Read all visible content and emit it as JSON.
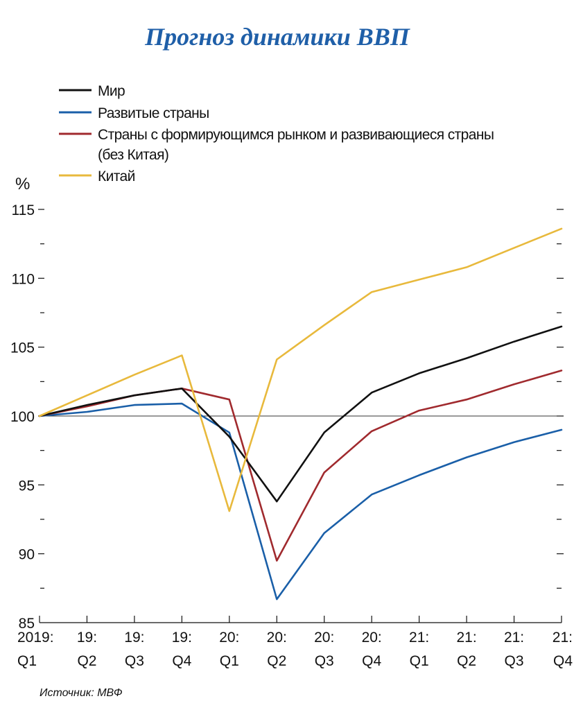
{
  "chart_data": {
    "type": "line",
    "title": "Прогноз динамики ВВП",
    "unit_label": "%",
    "source": "Источник: МВФ",
    "categories": [
      {
        "year": "2019:",
        "quarter": "Q1"
      },
      {
        "year": "19:",
        "quarter": "Q2"
      },
      {
        "year": "19:",
        "quarter": "Q3"
      },
      {
        "year": "19:",
        "quarter": "Q4"
      },
      {
        "year": "20:",
        "quarter": "Q1"
      },
      {
        "year": "20:",
        "quarter": "Q2"
      },
      {
        "year": "20:",
        "quarter": "Q3"
      },
      {
        "year": "20:",
        "quarter": "Q4"
      },
      {
        "year": "21:",
        "quarter": "Q1"
      },
      {
        "year": "21:",
        "quarter": "Q2"
      },
      {
        "year": "21:",
        "quarter": "Q3"
      },
      {
        "year": "21:",
        "quarter": "Q4"
      }
    ],
    "ylim": [
      85,
      115
    ],
    "yticks": [
      85,
      90,
      95,
      100,
      105,
      110,
      115
    ],
    "reference_line": 100,
    "legend_position": "top-left",
    "series": [
      {
        "name": "Мир",
        "name_lines": [
          "Мир"
        ],
        "color": "#111111",
        "values": [
          100,
          100.8,
          101.5,
          102.0,
          98.5,
          93.8,
          98.8,
          101.7,
          103.1,
          104.2,
          105.4,
          106.5
        ]
      },
      {
        "name": "Развитые страны",
        "name_lines": [
          "Развитые страны"
        ],
        "color": "#1a5fa8",
        "values": [
          100,
          100.3,
          100.8,
          100.9,
          98.8,
          86.7,
          91.5,
          94.3,
          95.7,
          97.0,
          98.1,
          99.0
        ]
      },
      {
        "name": "Страны с формирующимся рынком и развивающиеся страны (без Китая)",
        "name_lines": [
          "Страны с формирующимся рынком и развивающиеся страны",
          "(без Китая)"
        ],
        "color": "#a02a2e",
        "values": [
          100,
          100.7,
          101.5,
          102.0,
          101.2,
          89.5,
          95.9,
          98.9,
          100.4,
          101.2,
          102.3,
          103.3
        ]
      },
      {
        "name": "Китай",
        "name_lines": [
          "Китай"
        ],
        "color": "#e8b93c",
        "values": [
          100,
          101.5,
          103.0,
          104.4,
          93.1,
          104.1,
          106.6,
          109.0,
          109.9,
          110.8,
          112.2,
          113.6
        ]
      }
    ]
  }
}
